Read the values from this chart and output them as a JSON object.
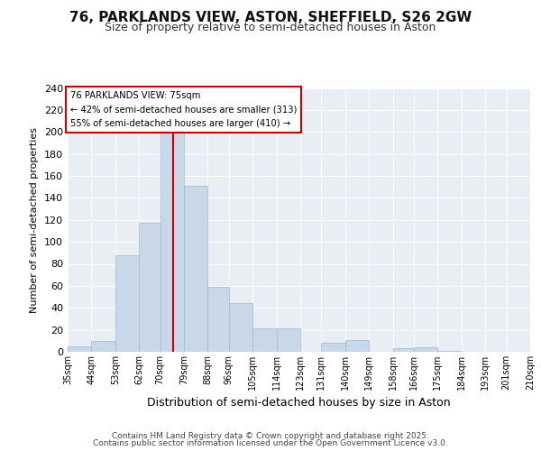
{
  "title_line1": "76, PARKLANDS VIEW, ASTON, SHEFFIELD, S26 2GW",
  "title_line2": "Size of property relative to semi-detached houses in Aston",
  "xlabel": "Distribution of semi-detached houses by size in Aston",
  "ylabel": "Number of semi-detached properties",
  "bar_color": "#c8d8e8",
  "bar_edge_color": "#a0b8d0",
  "vline_color": "#cc0000",
  "vline_x": 75,
  "annotation_title": "76 PARKLANDS VIEW: 75sqm",
  "annotation_line1": "← 42% of semi-detached houses are smaller (313)",
  "annotation_line2": "55% of semi-detached houses are larger (410) →",
  "bin_edges": [
    35,
    44,
    53,
    62,
    70,
    79,
    88,
    96,
    105,
    114,
    123,
    131,
    140,
    149,
    158,
    166,
    175,
    184,
    193,
    201,
    210
  ],
  "bin_labels": [
    "35sqm",
    "44sqm",
    "53sqm",
    "62sqm",
    "70sqm",
    "79sqm",
    "88sqm",
    "96sqm",
    "105sqm",
    "114sqm",
    "123sqm",
    "131sqm",
    "140sqm",
    "149sqm",
    "158sqm",
    "166sqm",
    "175sqm",
    "184sqm",
    "193sqm",
    "201sqm",
    "210sqm"
  ],
  "counts": [
    5,
    10,
    88,
    117,
    201,
    151,
    59,
    44,
    21,
    21,
    0,
    8,
    11,
    0,
    3,
    4,
    1,
    0,
    0,
    0
  ],
  "ylim": [
    0,
    240
  ],
  "yticks": [
    0,
    20,
    40,
    60,
    80,
    100,
    120,
    140,
    160,
    180,
    200,
    220,
    240
  ],
  "background_color": "#e8eef4",
  "footer_line1": "Contains HM Land Registry data © Crown copyright and database right 2025.",
  "footer_line2": "Contains public sector information licensed under the Open Government Licence v3.0."
}
